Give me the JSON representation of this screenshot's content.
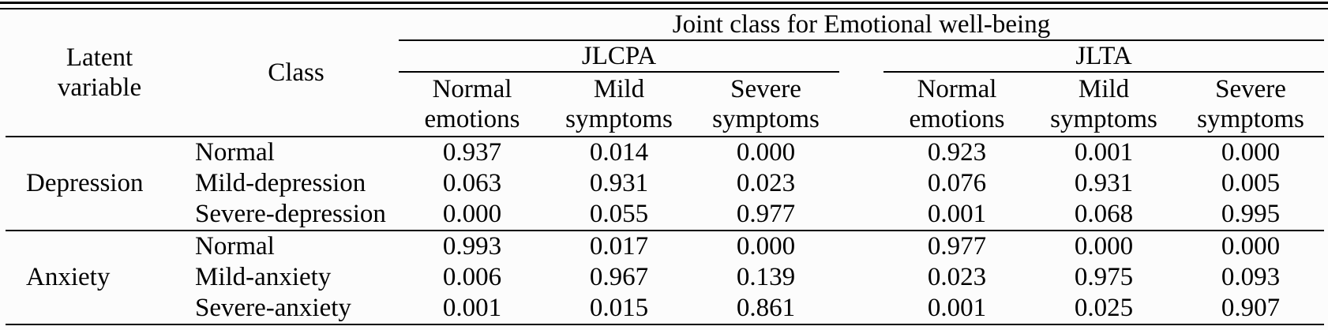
{
  "header": {
    "latent_variable_lines": [
      "Latent",
      "variable"
    ],
    "class_label": "Class",
    "joint_class_label": "Joint class for Emotional well-being",
    "group_labels": [
      "JLCPA",
      "JLTA"
    ],
    "subcolumns": [
      {
        "line1": "Normal",
        "line2": "emotions"
      },
      {
        "line1": "Mild",
        "line2": "symptoms"
      },
      {
        "line1": "Severe",
        "line2": "symptoms"
      }
    ]
  },
  "groups": [
    {
      "latent": "Depression",
      "rows": [
        {
          "class": "Normal",
          "values": [
            "0.937",
            "0.014",
            "0.000",
            "0.923",
            "0.001",
            "0.000"
          ]
        },
        {
          "class": "Mild-depression",
          "values": [
            "0.063",
            "0.931",
            "0.023",
            "0.076",
            "0.931",
            "0.005"
          ]
        },
        {
          "class": "Severe-depression",
          "values": [
            "0.000",
            "0.055",
            "0.977",
            "0.001",
            "0.068",
            "0.995"
          ]
        }
      ]
    },
    {
      "latent": "Anxiety",
      "rows": [
        {
          "class": "Normal",
          "values": [
            "0.993",
            "0.017",
            "0.000",
            "0.977",
            "0.000",
            "0.000"
          ]
        },
        {
          "class": "Mild-anxiety",
          "values": [
            "0.006",
            "0.967",
            "0.139",
            "0.023",
            "0.975",
            "0.093"
          ]
        },
        {
          "class": "Severe-anxiety",
          "values": [
            "0.001",
            "0.015",
            "0.861",
            "0.001",
            "0.025",
            "0.907"
          ]
        }
      ]
    }
  ],
  "colors": {
    "text": "#000000",
    "rule": "#000000",
    "background": "#fcfcfc"
  }
}
